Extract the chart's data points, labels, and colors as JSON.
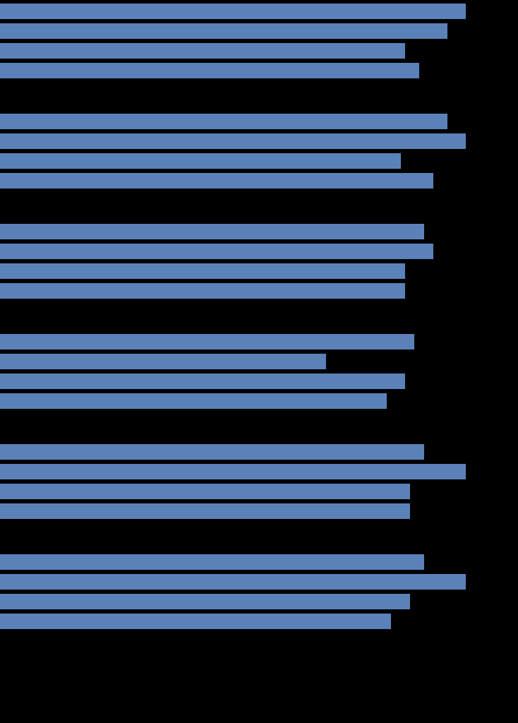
{
  "background_color": "#000000",
  "bar_color": "#5b82b8",
  "groups_values": [
    [
      100,
      96,
      87,
      90
    ],
    [
      96,
      100,
      86,
      93
    ],
    [
      91,
      93,
      87,
      87
    ],
    [
      89,
      70,
      87,
      83
    ],
    [
      91,
      100,
      88,
      88
    ],
    [
      91,
      100,
      88,
      84
    ]
  ],
  "fig_width": 7.34,
  "fig_height": 10.24,
  "dpi": 100
}
